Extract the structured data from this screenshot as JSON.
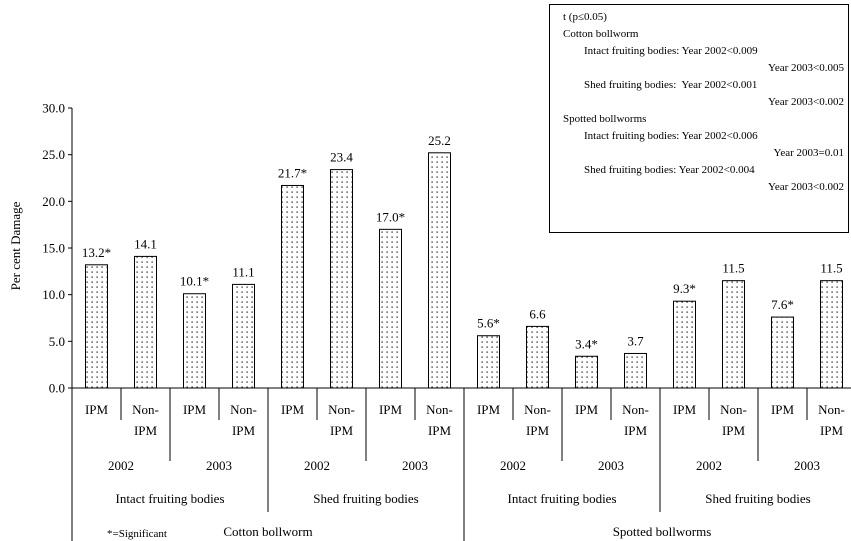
{
  "chart_data": {
    "type": "bar",
    "ylabel": "Per cent Damage",
    "ylim": [
      0,
      30
    ],
    "yticks": [
      "0.0",
      "5.0",
      "10.0",
      "15.0",
      "20.0",
      "25.0",
      "30.0"
    ],
    "bar_fill": "dotted",
    "categories": [
      {
        "treatment": "IPM",
        "year": "2002",
        "part": "Intact fruiting bodies",
        "pest": "Cotton bollworm",
        "value": 13.2,
        "label": "13.2*"
      },
      {
        "treatment": "Non-IPM",
        "year": "2002",
        "part": "Intact fruiting bodies",
        "pest": "Cotton bollworm",
        "value": 14.1,
        "label": "14.1"
      },
      {
        "treatment": "IPM",
        "year": "2003",
        "part": "Intact fruiting bodies",
        "pest": "Cotton bollworm",
        "value": 10.1,
        "label": "10.1*"
      },
      {
        "treatment": "Non-IPM",
        "year": "2003",
        "part": "Intact fruiting bodies",
        "pest": "Cotton bollworm",
        "value": 11.1,
        "label": "11.1"
      },
      {
        "treatment": "IPM",
        "year": "2002",
        "part": "Shed fruiting bodies",
        "pest": "Cotton bollworm",
        "value": 21.7,
        "label": "21.7*"
      },
      {
        "treatment": "Non-IPM",
        "year": "2002",
        "part": "Shed fruiting bodies",
        "pest": "Cotton bollworm",
        "value": 23.4,
        "label": "23.4"
      },
      {
        "treatment": "IPM",
        "year": "2003",
        "part": "Shed fruiting bodies",
        "pest": "Cotton bollworm",
        "value": 17.0,
        "label": "17.0*"
      },
      {
        "treatment": "Non-IPM",
        "year": "2003",
        "part": "Shed fruiting bodies",
        "pest": "Cotton bollworm",
        "value": 25.2,
        "label": "25.2"
      },
      {
        "treatment": "IPM",
        "year": "2002",
        "part": "Intact fruiting bodies",
        "pest": "Spotted bollworms",
        "value": 5.6,
        "label": "5.6*"
      },
      {
        "treatment": "Non-IPM",
        "year": "2002",
        "part": "Intact fruiting bodies",
        "pest": "Spotted bollworms",
        "value": 6.6,
        "label": "6.6"
      },
      {
        "treatment": "IPM",
        "year": "2003",
        "part": "Intact fruiting bodies",
        "pest": "Spotted bollworms",
        "value": 3.4,
        "label": "3.4*"
      },
      {
        "treatment": "Non-IPM",
        "year": "2003",
        "part": "Intact fruiting bodies",
        "pest": "Spotted bollworms",
        "value": 3.7,
        "label": "3.7"
      },
      {
        "treatment": "IPM",
        "year": "2002",
        "part": "Shed fruiting bodies",
        "pest": "Spotted bollworms",
        "value": 9.3,
        "label": "9.3*"
      },
      {
        "treatment": "Non-IPM",
        "year": "2002",
        "part": "Shed fruiting bodies",
        "pest": "Spotted bollworms",
        "value": 11.5,
        "label": "11.5"
      },
      {
        "treatment": "IPM",
        "year": "2003",
        "part": "Shed fruiting bodies",
        "pest": "Spotted bollworms",
        "value": 7.6,
        "label": "7.6*"
      },
      {
        "treatment": "Non-IPM",
        "year": "2003",
        "part": "Shed fruiting bodies",
        "pest": "Spotted bollworms",
        "value": 11.5,
        "label": "11.5"
      }
    ],
    "footnote": "*=Significant",
    "stats_box": {
      "title": "t (p≤0.05)",
      "groups": [
        {
          "pest": "Cotton bollworm",
          "items": [
            {
              "part": "Intact fruiting bodies:",
              "y2002": "Year 2002<0.009",
              "y2003": "Year 2003<0.005"
            },
            {
              "part": "Shed fruiting bodies:",
              "y2002": "Year 2002<0.001",
              "y2003": "Year 2003<0.002"
            }
          ]
        },
        {
          "pest": "Spotted bollworms",
          "items": [
            {
              "part": "Intact fruiting bodies:",
              "y2002": "Year 2002<0.006",
              "y2003": "Year 2003=0.01"
            },
            {
              "part": "Shed fruiting bodies:",
              "y2002": "Year 2002<0.004",
              "y2003": "Year 2003<0.002"
            }
          ]
        }
      ]
    }
  }
}
